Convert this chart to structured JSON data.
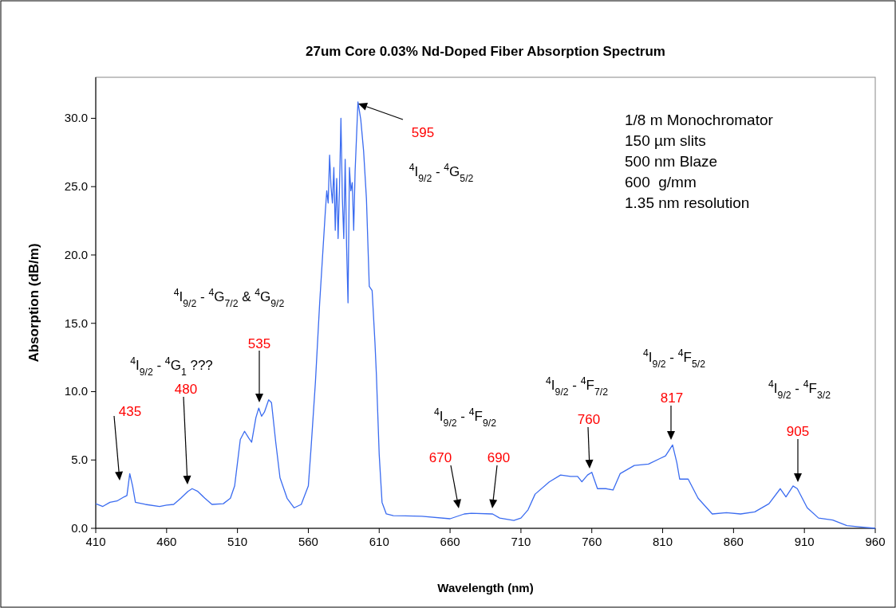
{
  "chart_data": {
    "type": "line",
    "title": "27um Core 0.03% Nd-Doped Fiber Absorption Spectrum",
    "xlabel": "Wavelength (nm)",
    "ylabel": "Absorption (dB/m)",
    "xlim": [
      410,
      960
    ],
    "xticks": [
      410,
      460,
      510,
      560,
      610,
      660,
      710,
      760,
      810,
      860,
      910,
      960
    ],
    "ylim": [
      0,
      33
    ],
    "yticks": [
      {
        "value": 0,
        "label": "0.0"
      },
      {
        "value": 5,
        "label": "5.0"
      },
      {
        "value": 10,
        "label": "10.0"
      },
      {
        "value": 15,
        "label": "15.0"
      },
      {
        "value": 20,
        "label": "20.0"
      },
      {
        "value": 25,
        "label": "25.0"
      },
      {
        "value": 30,
        "label": "30.0"
      }
    ],
    "grid": false,
    "marker": "none",
    "line_style": "solid",
    "series": [
      {
        "color": "#3b6cf0",
        "x": [
          410,
          415,
          420,
          425,
          430,
          432,
          434,
          436,
          438,
          445,
          455,
          460,
          465,
          470,
          475,
          478,
          482,
          487,
          492,
          500,
          505,
          508,
          512,
          515,
          518,
          520,
          523,
          525,
          527,
          529,
          532,
          534,
          537,
          540,
          545,
          550,
          555,
          560,
          562,
          565,
          568,
          572,
          573,
          574,
          575,
          576,
          577,
          578,
          579,
          580,
          581,
          582,
          583,
          584,
          585,
          586,
          587,
          588,
          589,
          590,
          591,
          592,
          593,
          595,
          597,
          599,
          601,
          603,
          605,
          607,
          608,
          610,
          612,
          615,
          620,
          640,
          660,
          670,
          675,
          690,
          695,
          705,
          710,
          715,
          720,
          730,
          738,
          745,
          750,
          753,
          757,
          760,
          764,
          770,
          775,
          780,
          790,
          800,
          808,
          812,
          817,
          820,
          822,
          828,
          835,
          845,
          855,
          865,
          875,
          885,
          893,
          897,
          902,
          905,
          912,
          920,
          930,
          940,
          950,
          960
        ],
        "values": [
          1.8,
          1.6,
          1.9,
          2.0,
          2.3,
          2.4,
          4.0,
          3.1,
          1.9,
          1.75,
          1.6,
          1.7,
          1.75,
          2.2,
          2.7,
          2.9,
          2.7,
          2.2,
          1.75,
          1.8,
          2.2,
          3.1,
          6.5,
          7.1,
          6.6,
          6.3,
          8.1,
          8.8,
          8.2,
          8.5,
          9.4,
          9.2,
          6.3,
          3.7,
          2.2,
          1.5,
          1.75,
          3.1,
          6.0,
          10.7,
          16.5,
          23.2,
          24.7,
          23.8,
          27.3,
          25.0,
          23.8,
          26.4,
          21.8,
          25.6,
          21.2,
          25.0,
          30.0,
          24.2,
          21.2,
          27.0,
          20.6,
          16.5,
          26.4,
          24.7,
          25.3,
          21.8,
          26.1,
          31.2,
          29.9,
          27.6,
          24.1,
          17.7,
          17.4,
          13.6,
          11.3,
          5.4,
          1.9,
          1.05,
          0.93,
          0.88,
          0.7,
          1.05,
          1.1,
          1.05,
          0.75,
          0.58,
          0.75,
          1.35,
          2.5,
          3.4,
          3.9,
          3.8,
          3.8,
          3.4,
          3.9,
          4.1,
          2.9,
          2.9,
          2.8,
          4.0,
          4.6,
          4.7,
          5.1,
          5.3,
          6.1,
          4.8,
          3.6,
          3.6,
          2.2,
          1.05,
          1.15,
          1.05,
          1.2,
          1.8,
          2.9,
          2.3,
          3.1,
          2.9,
          1.5,
          0.75,
          0.6,
          0.2,
          0.1,
          0.0
        ]
      }
    ],
    "annotations": [
      "435",
      "480",
      "535",
      "595",
      "670",
      "690",
      "760",
      "817",
      "905",
      "$^{4}$I$_{9/2}$ - $^{4}$G$_{5/2}$",
      "$^{4}$I$_{9/2}$ - $^{4}$G$_{7/2}$ & $^{4}$G$_{9/2}$",
      "$^{4}$I$_{9/2}$ - $^{4}$G$_{1}$ ???",
      "$^{4}$I$_{9/2}$ - $^{4}$F$_{9/2}$",
      "$^{4}$I$_{9/2}$ - $^{4}$F$_{7/2}$",
      "$^{4}$I$_{9/2}$ - $^{4}$F$_{5/2}$",
      "$^{4}$I$_{9/2}$ - $^{4}$F$_{3/2}$",
      "1/8 m Monochromator",
      "150 µm slits",
      "500 nm Blaze",
      "600  g/mm",
      "1.35 nm resolution"
    ]
  }
}
